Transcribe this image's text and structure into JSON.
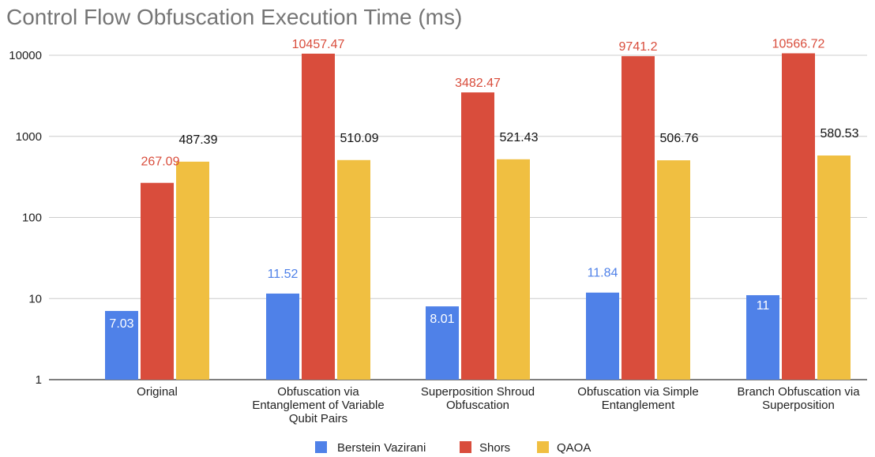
{
  "chart_data": {
    "type": "bar",
    "title": "Control Flow Obfuscation Execution Time (ms)",
    "xlabel": "",
    "ylabel": "",
    "yscale": "log",
    "ylim": [
      1,
      10000
    ],
    "yticks": [
      "1",
      "10",
      "100",
      "1000",
      "10000"
    ],
    "grid": true,
    "legend_position": "bottom",
    "categories": [
      "Original",
      "Obfuscation via Entanglement of Variable Qubit Pairs",
      "Superposition Shroud Obfuscation",
      "Obfuscation via Simple Entanglement",
      "Branch Obfuscation via Superposition"
    ],
    "category_lines": [
      [
        "Original"
      ],
      [
        "Obfuscation via",
        "Entanglement of Variable",
        "Qubit Pairs"
      ],
      [
        "Superposition Shroud",
        "Obfuscation"
      ],
      [
        "Obfuscation via Simple",
        "Entanglement"
      ],
      [
        "Branch Obfuscation via",
        "Superposition"
      ]
    ],
    "series": [
      {
        "name": "Berstein Vazirani",
        "color": "#4f81e8",
        "values": [
          7.03,
          11.52,
          8.01,
          11.84,
          11
        ],
        "labels": [
          "7.03",
          "11.52",
          "8.01",
          "11.84",
          "11"
        ]
      },
      {
        "name": "Shors",
        "color": "#d94d3c",
        "values": [
          267.09,
          10457.47,
          3482.47,
          9741.2,
          10566.72
        ],
        "labels": [
          "267.09",
          "10457.47",
          "3482.47",
          "9741.2",
          "10566.72"
        ]
      },
      {
        "name": "QAOA",
        "color": "#f0bf41",
        "values": [
          487.39,
          510.09,
          521.43,
          506.76,
          580.53
        ],
        "labels": [
          "487.39",
          "510.09",
          "521.43",
          "506.76",
          "580.53"
        ]
      }
    ]
  }
}
